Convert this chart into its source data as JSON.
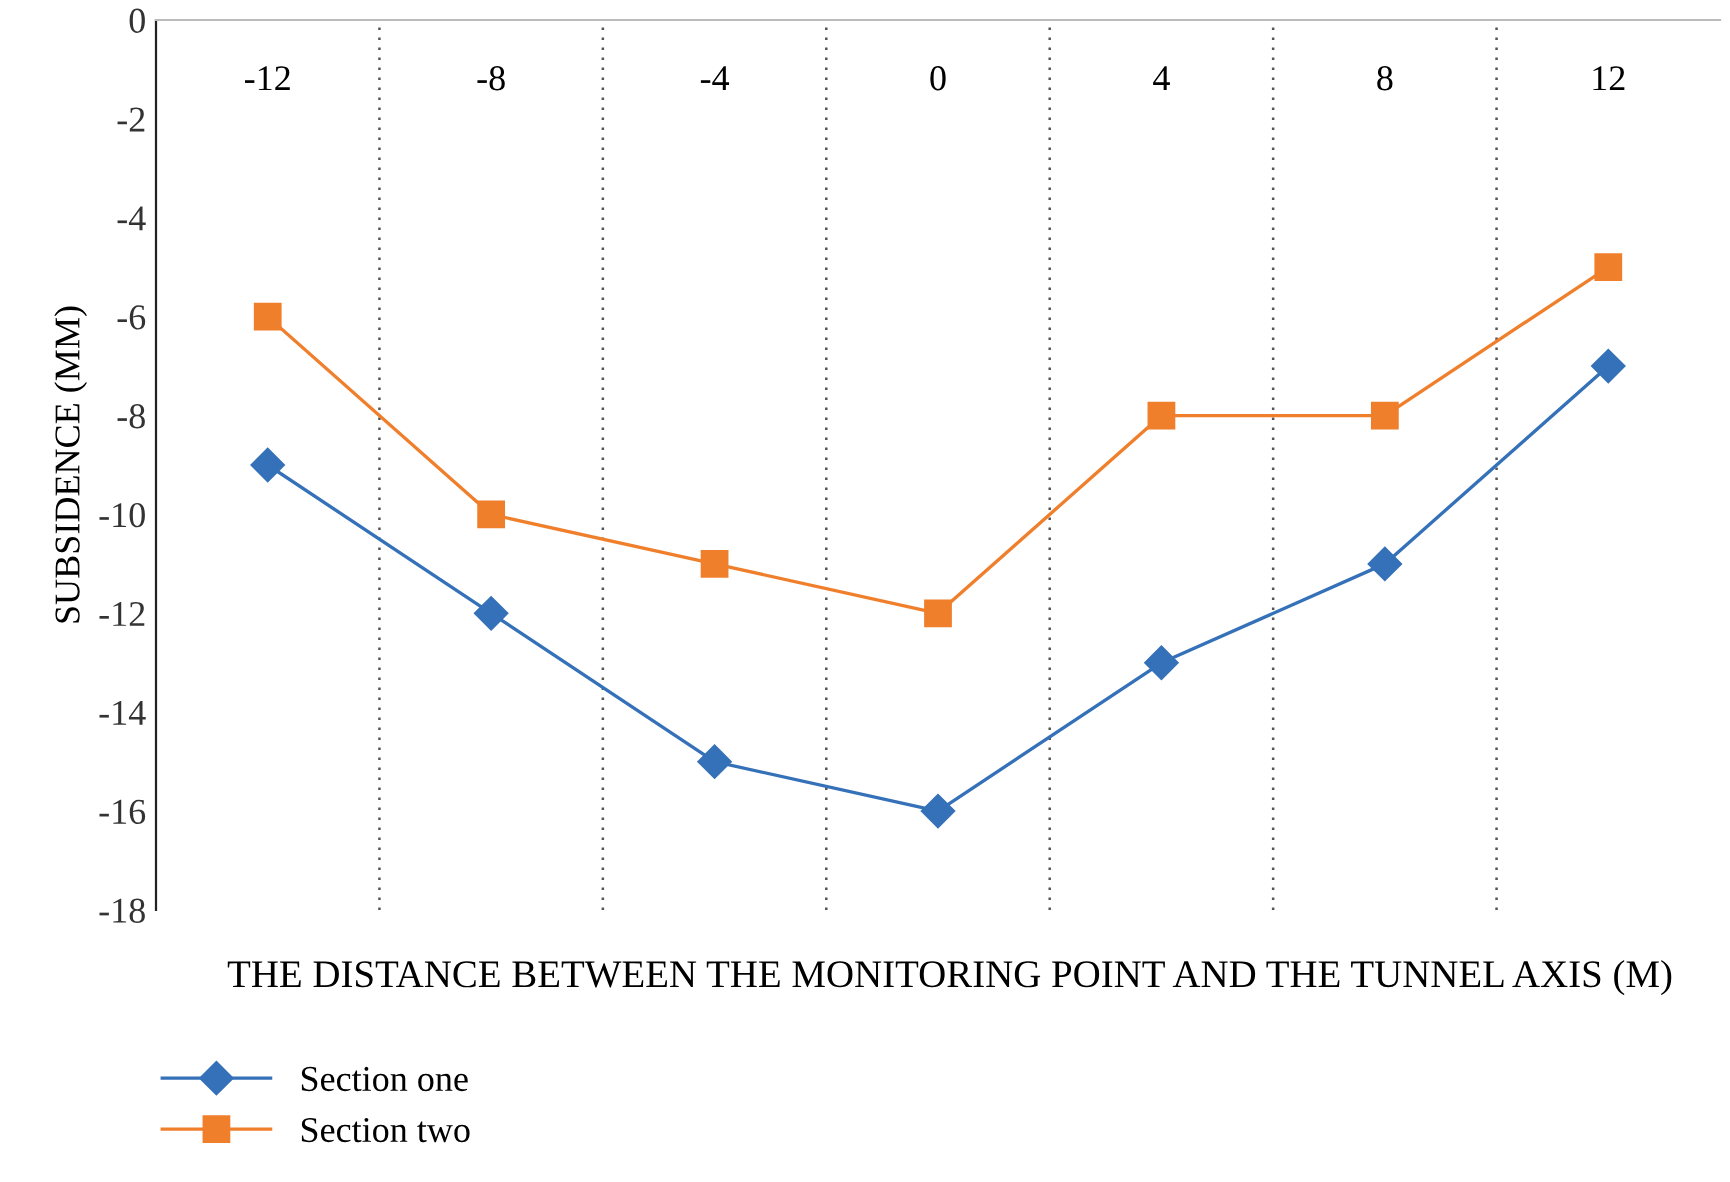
{
  "chart_data": {
    "type": "line",
    "ylabel": "SUBSIDENCE (MM)",
    "xlabel": "THE DISTANCE BETWEEN THE MONITORING POINT AND THE TUNNEL AXIS (M)",
    "categories": [
      "-12",
      "-8",
      "-4",
      "0",
      "4",
      "8",
      "12"
    ],
    "series": [
      {
        "name": "Section one",
        "color": "#3571b8",
        "marker": "diamond",
        "values": [
          -9,
          -12,
          -15,
          -16,
          -13,
          -11,
          -7
        ]
      },
      {
        "name": "Section two",
        "color": "#f07f2c",
        "marker": "square",
        "values": [
          -6,
          -10,
          -11,
          -12,
          -8,
          -8,
          -5
        ]
      }
    ],
    "ylim": [
      -18,
      0
    ],
    "yticks": [
      -18,
      -16,
      -14,
      -12,
      -10,
      -8,
      -6,
      -4,
      -2,
      0
    ],
    "grid": "x",
    "legend": "bottom left",
    "line_style": "solid"
  }
}
